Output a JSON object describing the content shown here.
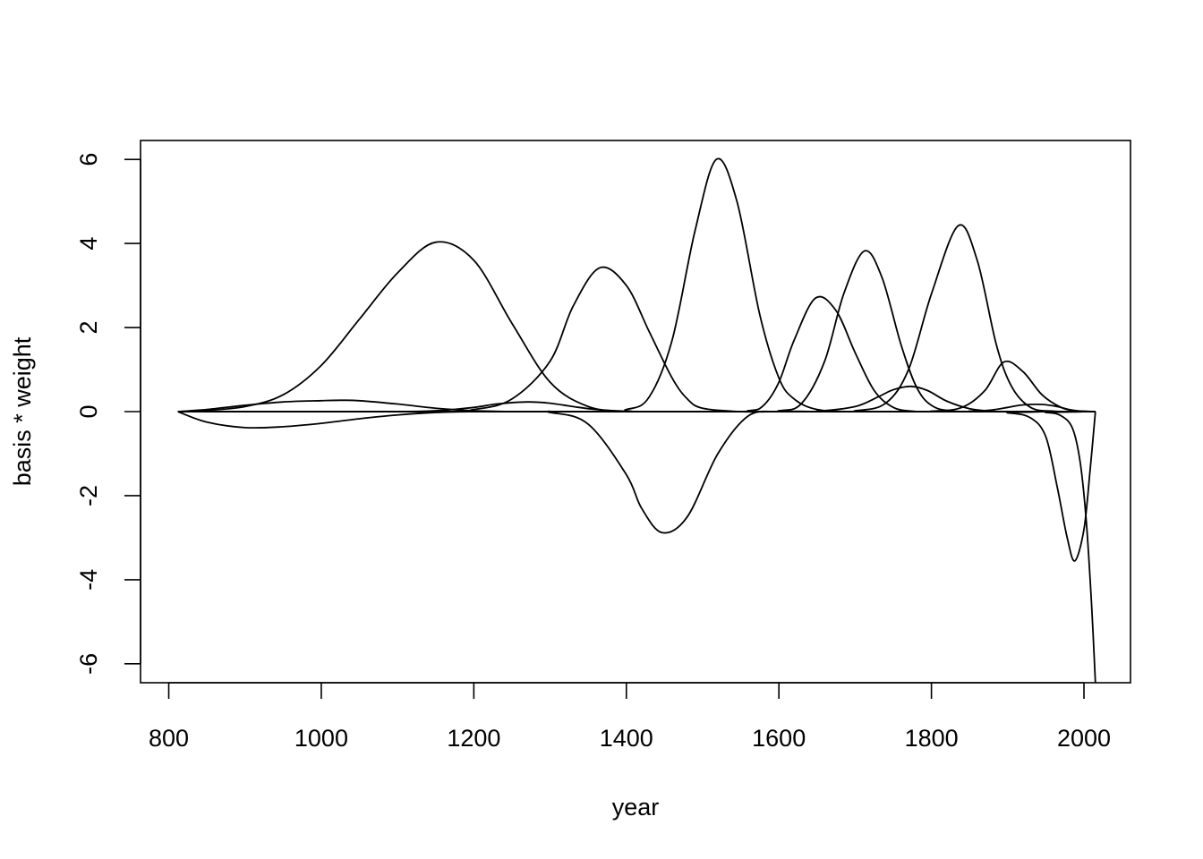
{
  "chart_data": {
    "type": "line",
    "title": "",
    "xlabel": "year",
    "ylabel": "basis * weight",
    "xlim": [
      763,
      2061
    ],
    "ylim": [
      -6.45,
      6.45
    ],
    "xticks": [
      800,
      1000,
      1200,
      1400,
      1600,
      1800,
      2000
    ],
    "yticks": [
      -6,
      -4,
      -2,
      0,
      2,
      4,
      6
    ],
    "grid": false,
    "legend": "none",
    "line_color": "#000000",
    "x_range": [
      812,
      2015
    ],
    "series": [
      {
        "x": [
          812,
          850,
          900,
          950,
          1000,
          1050,
          1100,
          1150,
          1200,
          1250,
          1300,
          1350,
          1400,
          1450,
          1500,
          1550,
          1600,
          1650,
          1700,
          1750,
          1800,
          1850,
          1900,
          1950,
          2015
        ],
        "values": [
          0,
          0.03,
          0.12,
          0.4,
          1.1,
          2.2,
          3.3,
          4.03,
          3.6,
          2.1,
          0.7,
          0.12,
          0.01,
          0,
          0,
          0,
          0,
          0,
          0,
          0,
          0,
          0,
          0,
          0,
          0
        ]
      },
      {
        "x": [
          812,
          850,
          900,
          950,
          1000,
          1050,
          1100,
          1150,
          1200,
          1250,
          1300,
          1350,
          1400,
          1450,
          1500,
          1550,
          1600,
          1650,
          1700,
          1750,
          1800,
          1850,
          1900,
          1950,
          2015
        ],
        "values": [
          0,
          -0.25,
          -0.38,
          -0.36,
          -0.28,
          -0.17,
          -0.08,
          -0.02,
          0,
          0,
          0,
          0,
          0,
          0,
          0,
          0,
          0,
          0,
          0,
          0,
          0,
          0,
          0,
          0,
          0
        ]
      },
      {
        "x": [
          812,
          850,
          900,
          950,
          1000,
          1025,
          1050,
          1100,
          1150,
          1200,
          1250,
          1300,
          1400,
          1500,
          1600,
          1700,
          1800,
          1900,
          2015
        ],
        "values": [
          0,
          0.05,
          0.15,
          0.23,
          0.26,
          0.27,
          0.26,
          0.18,
          0.08,
          0.02,
          0,
          0,
          0,
          0,
          0,
          0,
          0,
          0,
          0
        ]
      },
      {
        "x": [
          812,
          1000,
          1100,
          1150,
          1200,
          1230,
          1270,
          1300,
          1330,
          1360,
          1400,
          1450,
          1500,
          1600,
          1700,
          1800,
          1900,
          2015
        ],
        "values": [
          0,
          0,
          0,
          0.02,
          0.1,
          0.18,
          0.23,
          0.2,
          0.12,
          0.05,
          0,
          0,
          0,
          0,
          0,
          0,
          0,
          0
        ]
      },
      {
        "x": [
          812,
          1150,
          1200,
          1250,
          1300,
          1330,
          1365,
          1400,
          1430,
          1460,
          1480,
          1500,
          1550,
          1600,
          1700,
          1800,
          1900,
          2015
        ],
        "values": [
          0,
          0,
          0.05,
          0.3,
          1.2,
          2.5,
          3.42,
          3.0,
          1.9,
          0.8,
          0.3,
          0.08,
          0,
          0,
          0,
          0,
          0,
          0
        ]
      },
      {
        "x": [
          812,
          1250,
          1300,
          1350,
          1400,
          1420,
          1447,
          1480,
          1520,
          1560,
          1600,
          1650,
          1700,
          1800,
          1900,
          2015
        ],
        "values": [
          0,
          0,
          -0.02,
          -0.3,
          -1.5,
          -2.3,
          -2.88,
          -2.5,
          -1.0,
          -0.1,
          0,
          0,
          0,
          0,
          0,
          0
        ]
      },
      {
        "x": [
          812,
          1350,
          1400,
          1430,
          1460,
          1490,
          1518,
          1545,
          1575,
          1600,
          1620,
          1650,
          1700,
          1800,
          1900,
          2015
        ],
        "values": [
          0,
          0,
          0.05,
          0.35,
          1.7,
          4.3,
          6.0,
          5.0,
          2.3,
          0.8,
          0.3,
          0.05,
          0,
          0,
          0,
          0
        ]
      },
      {
        "x": [
          812,
          1500,
          1560,
          1580,
          1600,
          1620,
          1648,
          1675,
          1700,
          1725,
          1750,
          1775,
          1800,
          1900,
          2015
        ],
        "values": [
          0,
          0,
          0.02,
          0.15,
          0.7,
          1.7,
          2.7,
          2.4,
          1.4,
          0.5,
          0.1,
          0.01,
          0,
          0,
          0
        ]
      },
      {
        "x": [
          812,
          1550,
          1600,
          1630,
          1660,
          1685,
          1712,
          1735,
          1760,
          1780,
          1800,
          1830,
          1900,
          2015
        ],
        "values": [
          0,
          0,
          0.02,
          0.2,
          1.2,
          2.8,
          3.82,
          3.2,
          1.6,
          0.6,
          0.15,
          0.01,
          0,
          0
        ]
      },
      {
        "x": [
          812,
          1600,
          1650,
          1700,
          1730,
          1750,
          1773,
          1795,
          1820,
          1850,
          1880,
          1900,
          2015
        ],
        "values": [
          0,
          0,
          0.01,
          0.12,
          0.35,
          0.52,
          0.6,
          0.5,
          0.25,
          0.07,
          0.01,
          0,
          0
        ]
      },
      {
        "x": [
          812,
          1650,
          1700,
          1740,
          1770,
          1800,
          1835,
          1860,
          1885,
          1905,
          1930,
          1960,
          2000,
          2015
        ],
        "values": [
          0,
          0,
          0.02,
          0.2,
          1.0,
          2.8,
          4.42,
          3.6,
          1.6,
          0.6,
          0.1,
          0.01,
          0,
          0
        ]
      },
      {
        "x": [
          812,
          1750,
          1800,
          1840,
          1870,
          1895,
          1920,
          1945,
          1970,
          1990,
          2015
        ],
        "values": [
          0,
          0,
          0.01,
          0.1,
          0.5,
          1.18,
          0.95,
          0.4,
          0.1,
          0.02,
          0
        ]
      },
      {
        "x": [
          812,
          1800,
          1850,
          1880,
          1900,
          1920,
          1945,
          1965,
          1980,
          1995,
          2015
        ],
        "values": [
          0,
          0,
          0.01,
          0.04,
          0.1,
          0.16,
          0.17,
          0.12,
          0.05,
          0.01,
          0
        ]
      },
      {
        "x": [
          812,
          1850,
          1900,
          1930,
          1950,
          1965,
          1978,
          1988,
          2000,
          2008,
          2015
        ],
        "values": [
          0,
          0,
          -0.03,
          -0.15,
          -0.6,
          -1.8,
          -3.0,
          -3.55,
          -2.8,
          -1.4,
          0
        ]
      },
      {
        "x": [
          812,
          1900,
          1950,
          1970,
          1985,
          1995,
          2003,
          2010,
          2015
        ],
        "values": [
          0,
          0,
          -0.02,
          -0.1,
          -0.4,
          -1.2,
          -2.6,
          -4.6,
          -6.45
        ]
      }
    ]
  }
}
